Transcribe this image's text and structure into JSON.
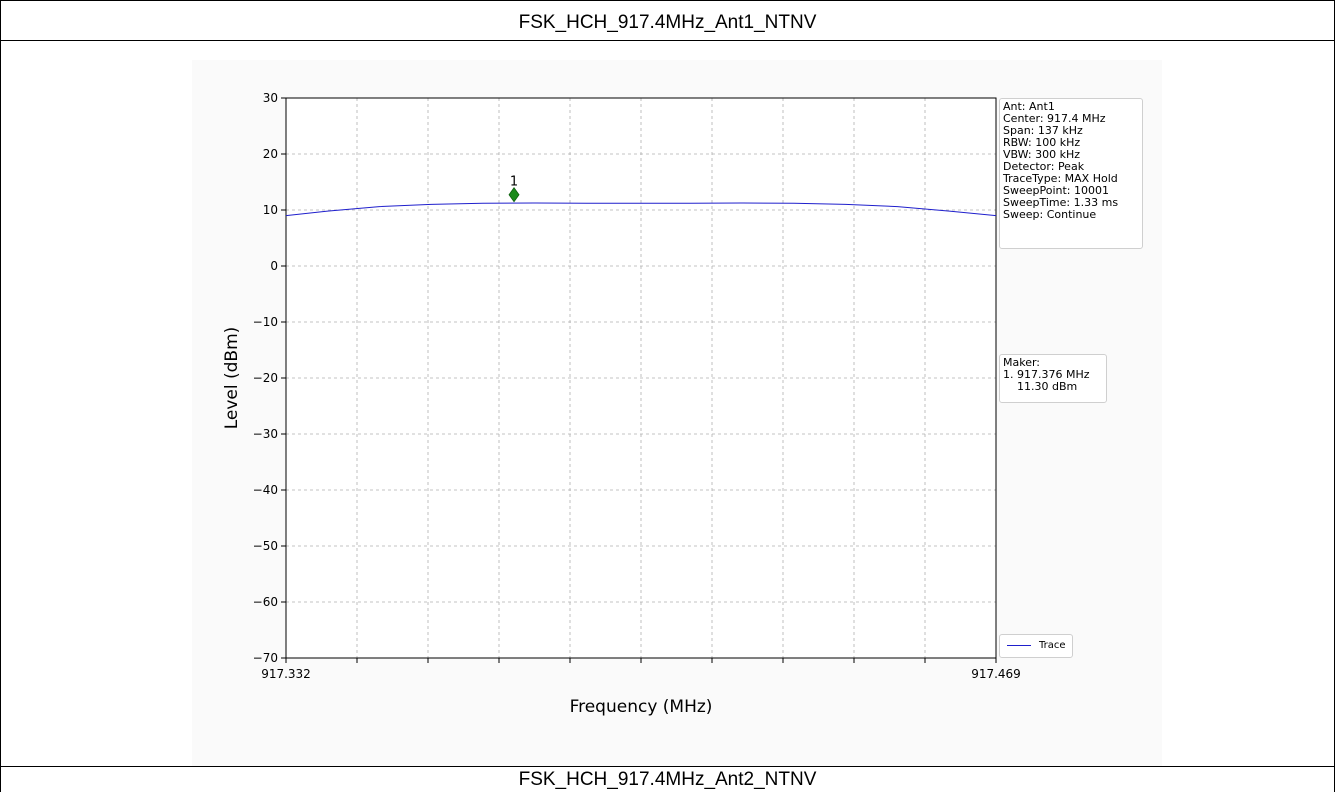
{
  "report": {
    "section_1_title": "FSK_HCH_917.4MHz_Ant1_NTNV",
    "section_2_title": "FSK_HCH_917.4MHz_Ant2_NTNV"
  },
  "settings_box": {
    "lines": [
      "Ant: Ant1",
      "Center: 917.4 MHz",
      "Span: 137 kHz",
      "RBW: 100 kHz",
      "VBW: 300 kHz",
      "Detector: Peak",
      "TraceType: MAX Hold",
      "SweepPoint: 10001",
      "SweepTime: 1.33 ms",
      "Sweep: Continue"
    ]
  },
  "marker_box": {
    "lines": [
      "Maker:",
      "1. 917.376 MHz",
      "    11.30 dBm"
    ]
  },
  "legend": {
    "label": "Trace"
  },
  "colors": {
    "trace": "#1f1fcc",
    "marker": "#1a8a1a",
    "grid": "#b0b0b0"
  },
  "chart_data": {
    "type": "line",
    "title": "",
    "xlabel": "Frequency (MHz)",
    "ylabel": "Level (dBm)",
    "xlim": [
      917.332,
      917.469
    ],
    "ylim": [
      -70,
      30
    ],
    "x_tick_labels": [
      "917.332",
      "917.469"
    ],
    "y_ticks": [
      30,
      20,
      10,
      0,
      -10,
      -20,
      -30,
      -40,
      -50,
      -60,
      -70
    ],
    "grid": true,
    "series": [
      {
        "name": "Trace",
        "x": [
          917.332,
          917.34,
          917.35,
          917.36,
          917.37,
          917.38,
          917.39,
          917.4,
          917.41,
          917.42,
          917.43,
          917.44,
          917.45,
          917.46,
          917.469
        ],
        "y": [
          9.0,
          9.8,
          10.6,
          11.0,
          11.2,
          11.25,
          11.2,
          11.2,
          11.2,
          11.25,
          11.2,
          11.0,
          10.6,
          9.8,
          9.0
        ]
      }
    ],
    "markers": [
      {
        "label": "1",
        "x": 917.376,
        "y": 11.3
      }
    ]
  }
}
